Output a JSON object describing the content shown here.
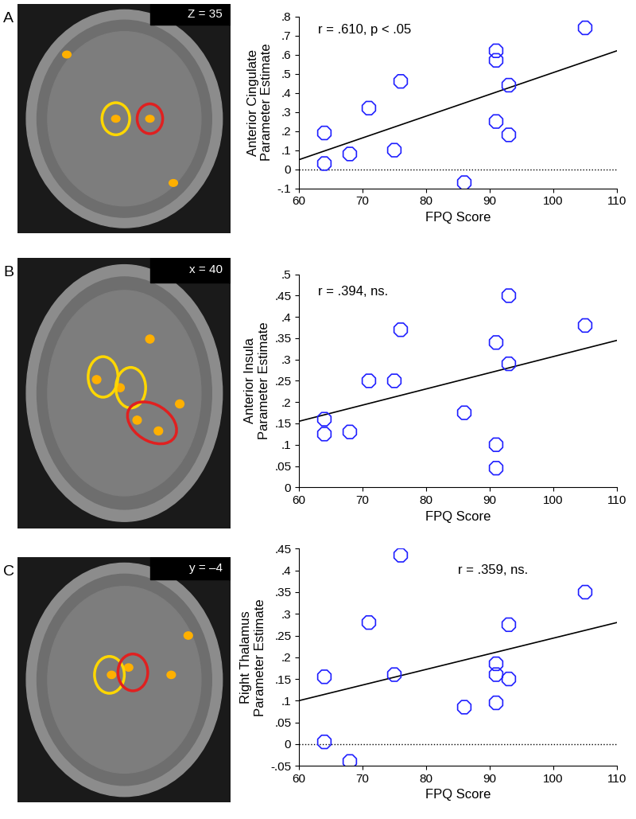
{
  "chart_data": [
    {
      "type": "scatter",
      "panel": "A",
      "image_label": "Z = 35",
      "annotations": [
        "r = .610, p < .05"
      ],
      "x_label": "FPQ Score",
      "y_label": "Anterior Cingulate\nParameter Estimate",
      "x": [
        64,
        64,
        68,
        71,
        75,
        76,
        86,
        91,
        91,
        91,
        93,
        93,
        105
      ],
      "values": [
        0.19,
        0.03,
        0.08,
        0.32,
        0.1,
        0.46,
        -0.07,
        0.62,
        0.57,
        0.25,
        0.44,
        0.18,
        0.74
      ],
      "fit_line": {
        "x": [
          60,
          110
        ],
        "y": [
          0.05,
          0.62
        ]
      },
      "reference_y": 0,
      "color": "#1f1fff",
      "marker": "octagon",
      "xlim": [
        60,
        110
      ],
      "xticks": [
        60,
        70,
        80,
        90,
        100,
        110
      ],
      "ylim": [
        -0.1,
        0.8
      ],
      "yticks": [
        {
          "value": -0.1,
          "label": "-.1"
        },
        0,
        {
          "value": 0.1,
          "label": ".1"
        },
        {
          "value": 0.2,
          "label": ".2"
        },
        {
          "value": 0.3,
          "label": ".3"
        },
        {
          "value": 0.4,
          "label": ".4"
        },
        {
          "value": 0.5,
          "label": ".5"
        },
        {
          "value": 0.6,
          "label": ".6"
        },
        {
          "value": 0.7,
          "label": ".7"
        },
        {
          "value": 0.8,
          "label": ".8"
        }
      ]
    },
    {
      "type": "scatter",
      "panel": "B",
      "image_label": "x = 40",
      "annotations": [
        "r = .394, ns."
      ],
      "x_label": "FPQ Score",
      "y_label": "Anterior Insula\nParameter Estimate",
      "x": [
        64,
        64,
        68,
        71,
        75,
        76,
        86,
        91,
        91,
        91,
        93,
        93,
        105
      ],
      "values": [
        0.16,
        0.125,
        0.13,
        0.25,
        0.25,
        0.37,
        0.175,
        0.34,
        0.1,
        0.045,
        0.45,
        0.29,
        0.38
      ],
      "fit_line": {
        "x": [
          60,
          110
        ],
        "y": [
          0.155,
          0.345
        ]
      },
      "color": "#1f1fff",
      "marker": "octagon",
      "xlim": [
        60,
        110
      ],
      "xticks": [
        60,
        70,
        80,
        90,
        100,
        110
      ],
      "ylim": [
        0,
        0.5
      ],
      "yticks": [
        0,
        {
          "value": 0.05,
          "label": ".05"
        },
        {
          "value": 0.1,
          "label": ".1"
        },
        {
          "value": 0.15,
          "label": ".15"
        },
        {
          "value": 0.2,
          "label": ".2"
        },
        {
          "value": 0.25,
          "label": ".25"
        },
        {
          "value": 0.3,
          "label": ".3"
        },
        {
          "value": 0.35,
          "label": ".35"
        },
        {
          "value": 0.4,
          "label": ".4"
        },
        {
          "value": 0.45,
          "label": ".45"
        },
        {
          "value": 0.5,
          "label": ".5"
        }
      ]
    },
    {
      "type": "scatter",
      "panel": "C",
      "image_label": "y = –4",
      "annotations": [
        "r = .359, ns."
      ],
      "x_label": "FPQ Score",
      "y_label": "Right Thalamus\nParameter Estimate",
      "x": [
        64,
        64,
        68,
        71,
        75,
        76,
        86,
        91,
        91,
        91,
        93,
        93,
        105
      ],
      "values": [
        0.155,
        0.005,
        -0.04,
        0.28,
        0.16,
        0.435,
        0.085,
        0.185,
        0.16,
        0.095,
        0.275,
        0.15,
        0.35
      ],
      "fit_line": {
        "x": [
          60,
          110
        ],
        "y": [
          0.1,
          0.28
        ]
      },
      "reference_y": 0,
      "color": "#1f1fff",
      "marker": "octagon",
      "xlim": [
        60,
        110
      ],
      "xticks": [
        60,
        70,
        80,
        90,
        100,
        110
      ],
      "ylim": [
        -0.05,
        0.45
      ],
      "yticks": [
        {
          "value": -0.05,
          "label": "-.05"
        },
        0,
        {
          "value": 0.05,
          "label": ".05"
        },
        {
          "value": 0.1,
          "label": ".1"
        },
        {
          "value": 0.15,
          "label": ".15"
        },
        {
          "value": 0.2,
          "label": ".2"
        },
        {
          "value": 0.25,
          "label": ".25"
        },
        {
          "value": 0.3,
          "label": ".3"
        },
        {
          "value": 0.35,
          "label": ".35"
        },
        {
          "value": 0.4,
          "label": ".4"
        },
        {
          "value": 0.45,
          "label": ".45"
        }
      ]
    }
  ]
}
